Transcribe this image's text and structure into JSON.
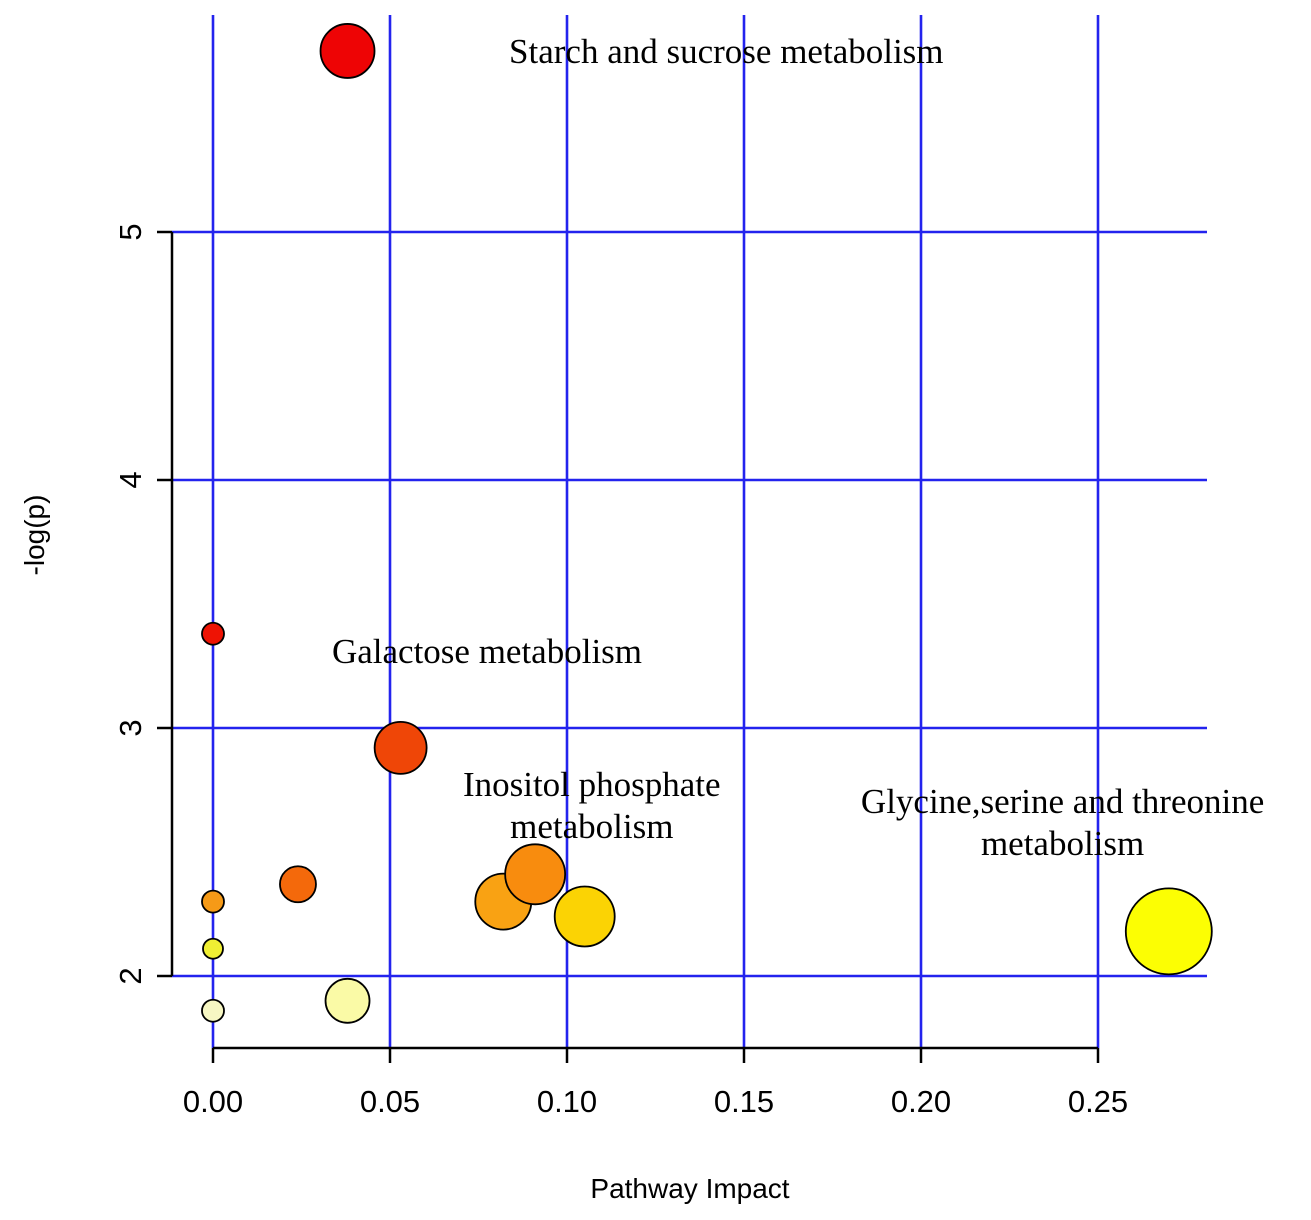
{
  "figure": {
    "background": "#ffffff"
  },
  "chart_data": {
    "type": "scatter",
    "title": "",
    "xlabel": "Pathway Impact",
    "ylabel": "-log(p)",
    "xlim": [
      0,
      0.25
    ],
    "ylim": [
      2,
      5
    ],
    "x_ticks": [
      0,
      0.05,
      0.1,
      0.15,
      0.2,
      0.25
    ],
    "x_tick_labels": [
      "0.00",
      "0.05",
      "0.10",
      "0.15",
      "0.20",
      "0.25"
    ],
    "y_ticks": [
      2,
      3,
      4,
      5
    ],
    "y_tick_labels": [
      "2",
      "3",
      "4",
      "5"
    ],
    "grid": true,
    "grid_color": "#2323ee",
    "axis_color": "#000000",
    "legend_position": "none",
    "points": [
      {
        "pathway": "Starch and sucrose metabolism",
        "x": 0.038,
        "y": 5.73,
        "r": 27,
        "color": "#ee0405"
      },
      {
        "x": 0.0,
        "y": 3.38,
        "r": 11,
        "color": "#ee1304"
      },
      {
        "pathway": "Galactose metabolism",
        "x": 0.053,
        "y": 2.92,
        "r": 26,
        "color": "#ef4607"
      },
      {
        "x": 0.024,
        "y": 2.37,
        "r": 18,
        "color": "#f4690b"
      },
      {
        "x": 0.0,
        "y": 2.3,
        "r": 11,
        "color": "#f69a17"
      },
      {
        "x": 0.0,
        "y": 2.11,
        "r": 10,
        "color": "#f0ef33"
      },
      {
        "x": 0.0,
        "y": 1.86,
        "r": 11,
        "color": "#f7f7c3"
      },
      {
        "x": 0.038,
        "y": 1.9,
        "r": 22,
        "color": "#fafaa6"
      },
      {
        "x": 0.082,
        "y": 2.3,
        "r": 28,
        "color": "#f9a213"
      },
      {
        "pathway": "Inositol phosphate metabolism",
        "x": 0.091,
        "y": 2.41,
        "r": 30,
        "color": "#f88c0e"
      },
      {
        "x": 0.105,
        "y": 2.24,
        "r": 30,
        "color": "#fbd304"
      },
      {
        "pathway": "Glycine,serine and threonine metabolism",
        "x": 0.27,
        "y": 2.18,
        "r": 43,
        "color": "#fcfe03"
      }
    ],
    "annotations": [
      {
        "lines": [
          "Starch and sucrose metabolism"
        ],
        "x": 0.145,
        "y": 5.73
      },
      {
        "lines": [
          "Galactose metabolism"
        ],
        "x": 0.0774,
        "y": 3.31
      },
      {
        "lines": [
          "Inositol phosphate",
          "metabolism"
        ],
        "x": 0.107,
        "y": 2.69
      },
      {
        "lines": [
          "Glycine,serine and threonine",
          "metabolism"
        ],
        "x": 0.24,
        "y": 2.62
      }
    ]
  }
}
